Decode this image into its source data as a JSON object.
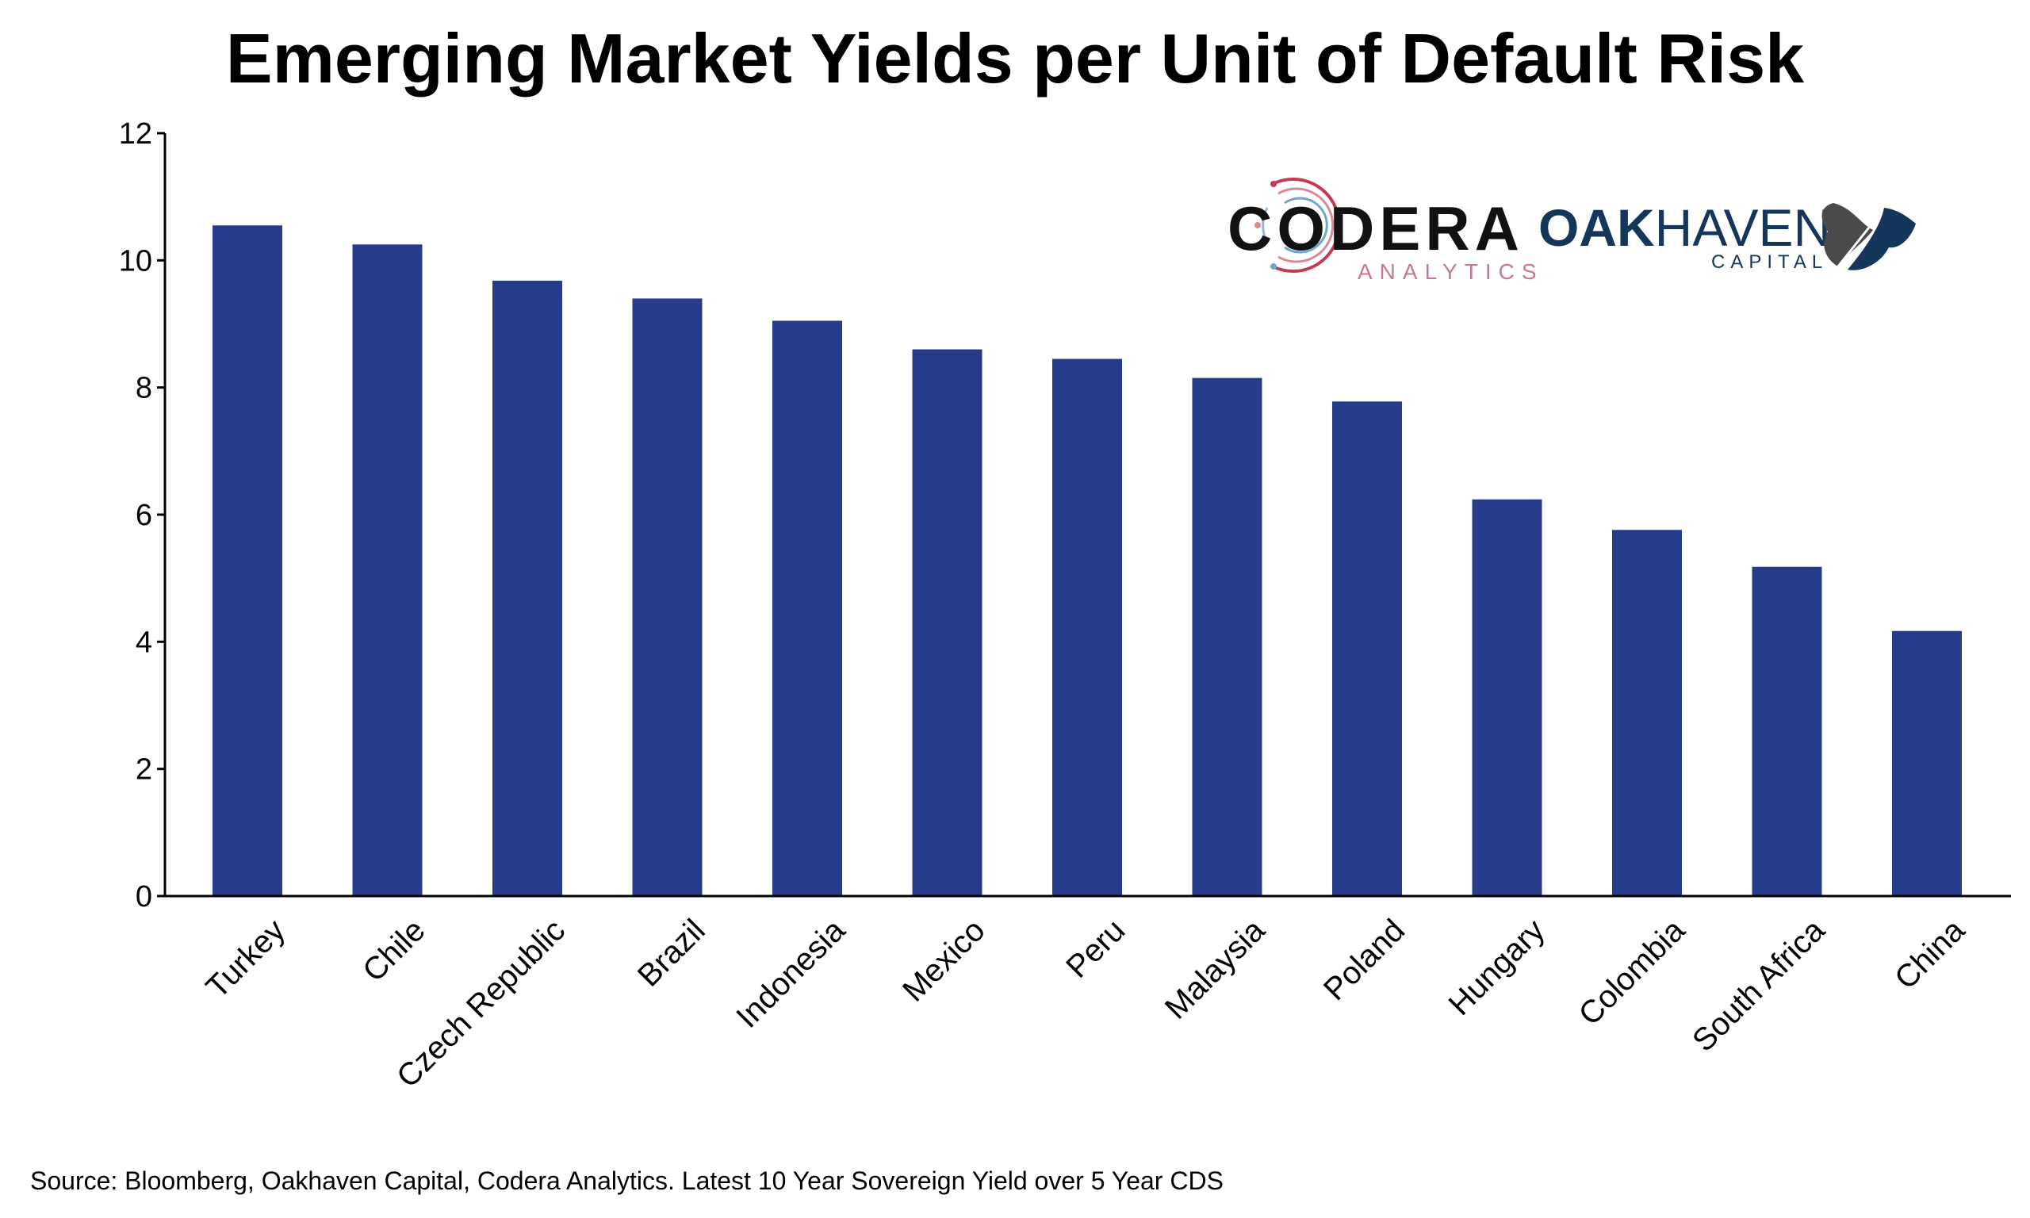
{
  "chart_data": {
    "type": "bar",
    "title": "Emerging Market Yields per Unit of Default Risk",
    "categories": [
      "Turkey",
      "Chile",
      "Czech Republic",
      "Brazil",
      "Indonesia",
      "Mexico",
      "Peru",
      "Malaysia",
      "Poland",
      "Hungary",
      "Colombia",
      "South Africa",
      "China"
    ],
    "values": [
      10.55,
      10.25,
      9.68,
      9.4,
      9.05,
      8.6,
      8.45,
      8.15,
      7.78,
      6.24,
      5.76,
      5.18,
      4.17
    ],
    "xlabel": "",
    "ylabel": "",
    "ylim": [
      0,
      12
    ],
    "yticks": [
      0,
      2,
      4,
      6,
      8,
      10,
      12
    ],
    "grid": false,
    "bar_color": "#273b8b",
    "source": "Source: Bloomberg, Oakhaven Capital, Codera Analytics. Latest 10 Year Sovereign Yield over 5 Year CDS"
  },
  "logos": {
    "codera": {
      "name": "CODERA",
      "sub": "ANALYTICS",
      "icon": "codera-circuit-ring-logo"
    },
    "oakhaven": {
      "name_dark": "OAK",
      "name_light": "HAVEN",
      "sub": "CAPITAL",
      "icon": "oak-leaf-logo",
      "color": "#14365a"
    }
  }
}
